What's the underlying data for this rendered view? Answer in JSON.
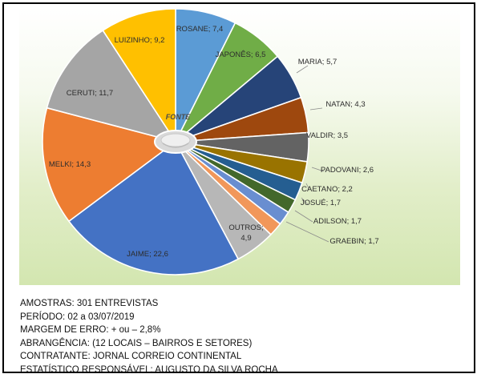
{
  "chart_data": {
    "type": "pie",
    "title": "",
    "center_text": "FONTE",
    "slices": [
      {
        "label": "ROSANE",
        "value": 7.4,
        "color": "#5b9bd5"
      },
      {
        "label": "JAPONÊS",
        "value": 6.5,
        "color": "#70ad47"
      },
      {
        "label": "MARIA",
        "value": 5.7,
        "color": "#264478"
      },
      {
        "label": "NATAN",
        "value": 4.3,
        "color": "#9e480e"
      },
      {
        "label": "VALDIR",
        "value": 3.5,
        "color": "#636363"
      },
      {
        "label": "PADOVANI",
        "value": 2.6,
        "color": "#997300"
      },
      {
        "label": "CAETANO",
        "value": 2.2,
        "color": "#255e91"
      },
      {
        "label": "JOSUÉ",
        "value": 1.7,
        "color": "#43682b"
      },
      {
        "label": "ADILSON",
        "value": 1.7,
        "color": "#698ed0"
      },
      {
        "label": "GRAEBIN",
        "value": 1.7,
        "color": "#f1975a"
      },
      {
        "label": "OUTROS",
        "value": 4.9,
        "color": "#b7b7b7"
      },
      {
        "label": "JAIME",
        "value": 22.6,
        "color": "#4472c4"
      },
      {
        "label": "MELKI",
        "value": 14.3,
        "color": "#ed7d31"
      },
      {
        "label": "CERUTI",
        "value": 11.7,
        "color": "#a5a5a5"
      },
      {
        "label": "LUIZINHO",
        "value": 9.2,
        "color": "#ffc000"
      }
    ]
  },
  "notes": {
    "samples": "AMOSTRAS: 301 ENTREVISTAS",
    "period": "PERÍODO: 02 a 03/07/2019",
    "margin": "MARGEM DE ERRO: + ou – 2,8%",
    "coverage": "ABRANGÊNCIA: (12 LOCAIS – BAIRROS E SETORES)",
    "contractor": "CONTRATANTE: JORNAL CORREIO CONTINENTAL",
    "statistician": "ESTATÍSTICO RESPONSÁVEL: AUGUSTO DA SILVA ROCHA"
  }
}
